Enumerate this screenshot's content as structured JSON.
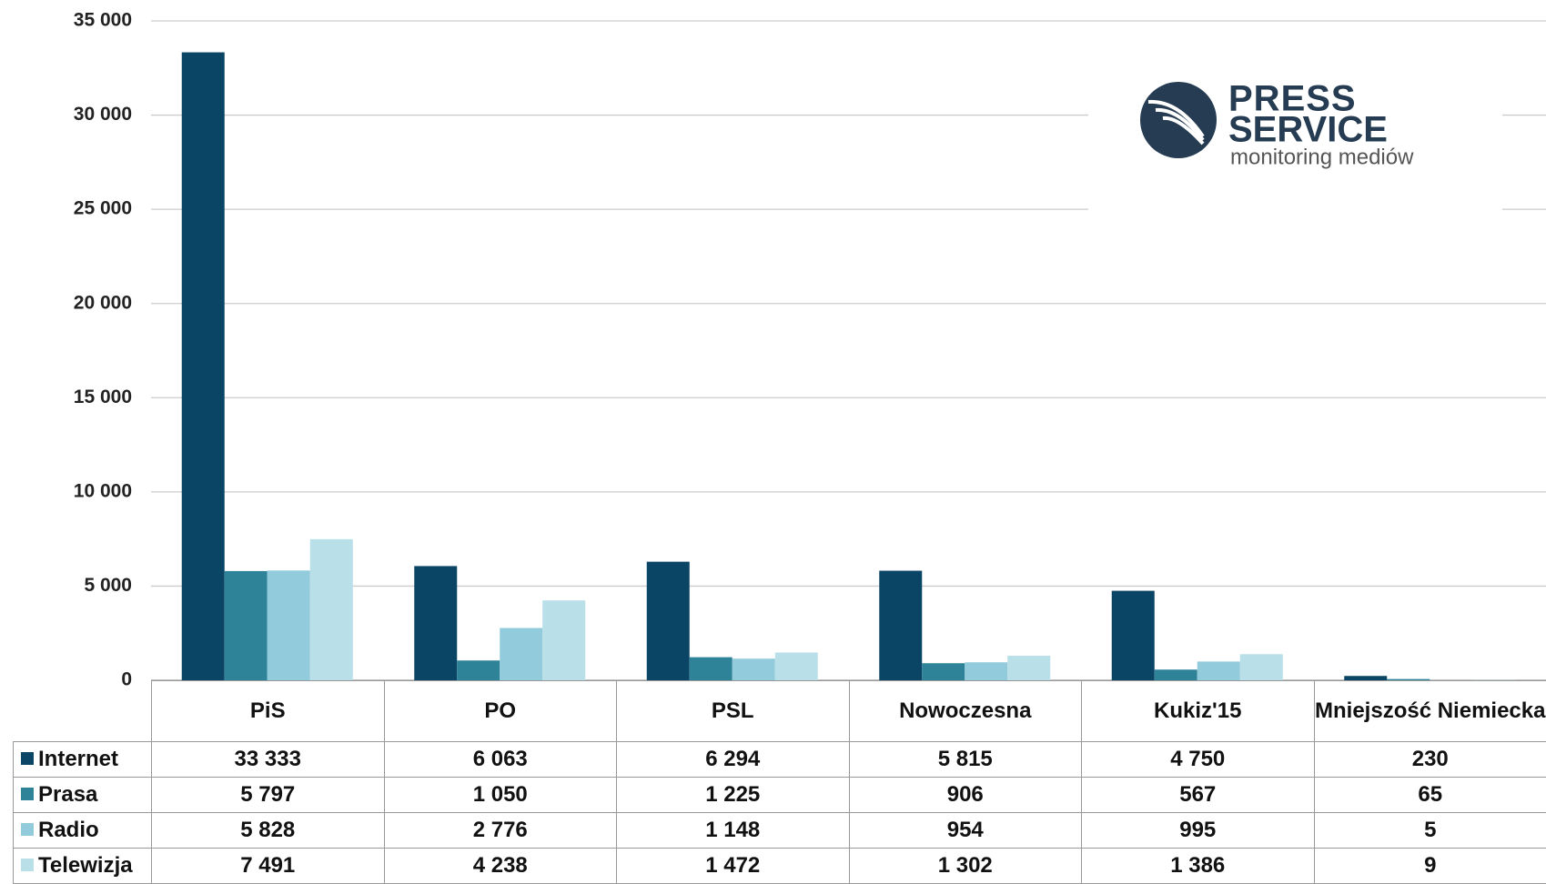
{
  "chart_data": {
    "type": "bar",
    "logo": {
      "line1": "PRESS",
      "line2": "SERVICE",
      "tagline": "monitoring mediów"
    },
    "categories": [
      "PiS",
      "PO",
      "PSL",
      "Nowoczesna",
      "Kukiz'15",
      "Mniejszość Niemiecka"
    ],
    "series": [
      {
        "name": "Internet",
        "color": "#0b4566",
        "values": [
          33333,
          6063,
          6294,
          5815,
          4750,
          230
        ],
        "value_labels": [
          "33 333",
          "6 063",
          "6 294",
          "5 815",
          "4 750",
          "230"
        ]
      },
      {
        "name": "Prasa",
        "color": "#2e8399",
        "values": [
          5797,
          1050,
          1225,
          906,
          567,
          65
        ],
        "value_labels": [
          "5 797",
          "1 050",
          "1 225",
          "906",
          "567",
          "65"
        ]
      },
      {
        "name": "Radio",
        "color": "#92cbdc",
        "values": [
          5828,
          2776,
          1148,
          954,
          995,
          5
        ],
        "value_labels": [
          "5 828",
          "2 776",
          "1 148",
          "954",
          "995",
          "5"
        ]
      },
      {
        "name": "Telewizja",
        "color": "#b9dfe8",
        "values": [
          7491,
          4238,
          1472,
          1302,
          1386,
          9
        ],
        "value_labels": [
          "7 491",
          "4 238",
          "1 472",
          "1 302",
          "1 386",
          "9"
        ]
      }
    ],
    "ylim": [
      0,
      35000
    ],
    "yticks": [
      0,
      {
        "value": 5000,
        "label": "5 000"
      },
      {
        "value": 10000,
        "label": "10 000"
      },
      {
        "value": 15000,
        "label": "15 000"
      },
      {
        "value": 20000,
        "label": "20 000"
      },
      {
        "value": 25000,
        "label": "25 000"
      },
      {
        "value": 30000,
        "label": "30 000"
      },
      {
        "value": 35000,
        "label": "35 000"
      }
    ],
    "grid": true
  }
}
